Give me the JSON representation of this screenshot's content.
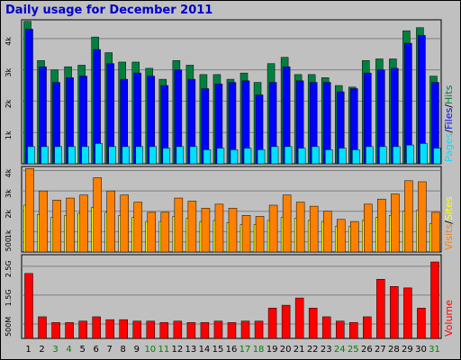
{
  "title": "Daily usage for December 2011",
  "colors": {
    "pages": "#00e0ff",
    "files": "#0000ff",
    "hits": "#008040",
    "visits": "#ff8000",
    "sites": "#ffff00",
    "volume": "#ff0000",
    "weekend_label": "#007f00",
    "weekday_label": "#000000"
  },
  "chart_data": [
    {
      "type": "bar",
      "title": "Daily usage for December 2011",
      "ylabel_parts": [
        "Pages",
        "/",
        "Files",
        "/",
        "Hits"
      ],
      "y_ticks": [
        "1k",
        "2k",
        "3k",
        "4k"
      ],
      "ylim": [
        0,
        4600
      ],
      "categories": [
        "1",
        "2",
        "3",
        "4",
        "5",
        "6",
        "7",
        "8",
        "9",
        "10",
        "11",
        "12",
        "13",
        "14",
        "15",
        "16",
        "17",
        "18",
        "19",
        "20",
        "21",
        "22",
        "23",
        "24",
        "25",
        "26",
        "27",
        "28",
        "29",
        "30",
        "31"
      ],
      "weekend_days": [
        "3",
        "4",
        "10",
        "11",
        "17",
        "18",
        "24",
        "25",
        "31"
      ],
      "series": [
        {
          "name": "Hits",
          "values": [
            4550,
            3300,
            3000,
            3100,
            3150,
            4050,
            3550,
            3250,
            3250,
            3050,
            2700,
            3300,
            3150,
            2850,
            2850,
            2700,
            2900,
            2600,
            3200,
            3400,
            2850,
            2850,
            2750,
            2500,
            2450,
            3300,
            3350,
            3350,
            4250,
            4350,
            2800
          ]
        },
        {
          "name": "Files",
          "values": [
            4300,
            3100,
            2600,
            2750,
            2800,
            3650,
            3200,
            2700,
            2900,
            2800,
            2500,
            3000,
            2700,
            2400,
            2550,
            2600,
            2650,
            2200,
            2600,
            3100,
            2650,
            2600,
            2600,
            2300,
            2400,
            2900,
            3000,
            3050,
            3850,
            4100,
            2600
          ]
        },
        {
          "name": "Pages",
          "values": [
            550,
            550,
            550,
            550,
            550,
            650,
            550,
            550,
            550,
            550,
            500,
            550,
            550,
            450,
            500,
            450,
            500,
            450,
            550,
            550,
            500,
            550,
            450,
            500,
            450,
            550,
            550,
            550,
            600,
            650,
            500
          ]
        }
      ]
    },
    {
      "type": "bar",
      "ylabel_parts": [
        "Visits",
        "/",
        "Sites"
      ],
      "y_ticks": [
        "500",
        "1k",
        "2k",
        "3k",
        "4k"
      ],
      "ylim": [
        0,
        4200
      ],
      "categories": [
        "1",
        "2",
        "3",
        "4",
        "5",
        "6",
        "7",
        "8",
        "9",
        "10",
        "11",
        "12",
        "13",
        "14",
        "15",
        "16",
        "17",
        "18",
        "19",
        "20",
        "21",
        "22",
        "23",
        "24",
        "25",
        "26",
        "27",
        "28",
        "29",
        "30",
        "31"
      ],
      "series": [
        {
          "name": "Visits",
          "values": [
            4100,
            3000,
            2550,
            2650,
            2800,
            3650,
            3000,
            2800,
            2450,
            1950,
            1950,
            2650,
            2500,
            2150,
            2350,
            2150,
            1800,
            1750,
            2300,
            2800,
            2450,
            2250,
            2000,
            1600,
            1500,
            2350,
            2600,
            2850,
            3500,
            3450,
            1950
          ]
        },
        {
          "name": "Sites",
          "values": [
            2300,
            1850,
            1700,
            1800,
            1900,
            2200,
            1950,
            1800,
            1700,
            1500,
            1500,
            1750,
            1650,
            1500,
            1550,
            1450,
            1350,
            1350,
            1550,
            1700,
            1650,
            1550,
            1500,
            1250,
            1250,
            1550,
            1700,
            1800,
            2000,
            2050,
            1400
          ]
        }
      ]
    },
    {
      "type": "bar",
      "ylabel_parts": [
        "Volume"
      ],
      "y_ticks": [
        "500M",
        "1.5G",
        "2.5G"
      ],
      "ylim": [
        0,
        2900
      ],
      "categories": [
        "1",
        "2",
        "3",
        "4",
        "5",
        "6",
        "7",
        "8",
        "9",
        "10",
        "11",
        "12",
        "13",
        "14",
        "15",
        "16",
        "17",
        "18",
        "19",
        "20",
        "21",
        "22",
        "23",
        "24",
        "25",
        "26",
        "27",
        "28",
        "29",
        "30",
        "31"
      ],
      "series": [
        {
          "name": "Volume",
          "values": [
            2250,
            750,
            550,
            550,
            600,
            750,
            650,
            650,
            600,
            600,
            550,
            600,
            550,
            550,
            600,
            550,
            600,
            600,
            1050,
            1150,
            1400,
            1050,
            750,
            600,
            550,
            750,
            2050,
            1800,
            1750,
            1050,
            2650
          ]
        }
      ]
    }
  ]
}
